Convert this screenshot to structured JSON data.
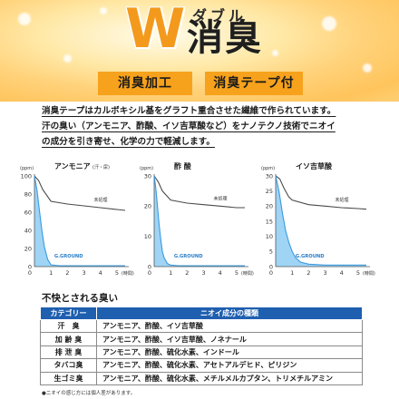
{
  "header": {
    "title_w": "W",
    "title_sub": "ダブル",
    "title_main": "消臭",
    "tags": [
      "消臭加工",
      "消臭テープ付"
    ]
  },
  "description": [
    "消臭テープはカルボキシル基をグラフト重合させた繊維で作られています。",
    "汗の臭い（アンモニア、酢酸、イソ吉草酸など）をナノテクノ技術でニオイ",
    "の成分を引き寄せ、化学の力で軽減します。"
  ],
  "chart_data": [
    {
      "type": "line",
      "title": "アンモニア",
      "title_note": "(汗・尿)",
      "y_unit": "(ppm)",
      "x_unit": "(時間)",
      "x_ticks": [
        1,
        2,
        3,
        4,
        5
      ],
      "y_ticks": [
        0,
        20,
        40,
        60,
        80,
        100
      ],
      "xlim": [
        0,
        5.5
      ],
      "ylim": [
        0,
        100
      ],
      "series": [
        {
          "name": "未処理",
          "x": [
            0,
            0.25,
            0.5,
            1,
            2,
            3,
            4,
            5,
            5.5
          ],
          "y": [
            100,
            95,
            85,
            72,
            69,
            67,
            65,
            63,
            62
          ]
        },
        {
          "name": "G.GROUND",
          "x": [
            0,
            0.15,
            0.3,
            0.45,
            0.6,
            0.8,
            1.0,
            1.5,
            2,
            3,
            4,
            5,
            5.5
          ],
          "y": [
            100,
            85,
            62,
            40,
            22,
            8,
            2,
            1,
            1,
            1,
            1,
            1,
            1
          ]
        }
      ],
      "grid": false
    },
    {
      "type": "line",
      "title": "酢 酸",
      "title_note": "",
      "y_unit": "(ppm)",
      "x_unit": "(時間)",
      "x_ticks": [
        1,
        2,
        3,
        4,
        5
      ],
      "y_ticks": [
        0,
        10,
        20,
        30
      ],
      "xlim": [
        0,
        5.5
      ],
      "ylim": [
        0,
        30
      ],
      "series": [
        {
          "name": "未処理",
          "x": [
            0,
            0.25,
            0.5,
            1,
            2,
            3,
            4,
            5,
            5.5
          ],
          "y": [
            30,
            28,
            25,
            22,
            21,
            20.5,
            20,
            19.5,
            19.5
          ]
        },
        {
          "name": "G.GROUND",
          "x": [
            0,
            0.1,
            0.2,
            0.3,
            0.4,
            0.5,
            0.6,
            0.8,
            1.0,
            1.5,
            2,
            3,
            4,
            5,
            5.5
          ],
          "y": [
            30,
            26,
            20,
            14,
            9,
            5,
            3,
            1,
            0.5,
            0.3,
            0.3,
            0.3,
            0.3,
            0.3,
            0.3
          ]
        }
      ],
      "grid": false
    },
    {
      "type": "line",
      "title": "イソ吉草酸",
      "title_note": "",
      "y_unit": "(ppm)",
      "x_unit": "(時間)",
      "x_ticks": [
        1,
        2,
        3,
        4,
        5
      ],
      "y_ticks": [
        0,
        5,
        10,
        15,
        20,
        25,
        30
      ],
      "xlim": [
        0,
        5.5
      ],
      "ylim": [
        0,
        30
      ],
      "series": [
        {
          "name": "未処理",
          "x": [
            0,
            0.25,
            0.5,
            0.8,
            1,
            2,
            3,
            4,
            5,
            5.5
          ],
          "y": [
            30,
            29,
            26,
            23,
            22,
            20.5,
            20,
            19.5,
            19.2,
            19
          ]
        },
        {
          "name": "G.GROUND",
          "x": [
            0,
            0.2,
            0.4,
            0.6,
            0.8,
            1.0,
            1.2,
            1.5,
            2,
            3,
            4,
            5,
            5.5
          ],
          "y": [
            30,
            25,
            18,
            12,
            8,
            5,
            3,
            1.5,
            0.8,
            0.5,
            0.5,
            0.5,
            0.5
          ]
        }
      ],
      "grid": false
    }
  ],
  "chart_colors": {
    "untreated": "#4a4a4a",
    "gground": "#3a9ae0",
    "fill": "#9fd4f5"
  },
  "table": {
    "title": "不快とされる臭い",
    "headers": [
      "カテゴリー",
      "ニオイ成分の種類"
    ],
    "rows": [
      {
        "category": "汗　臭",
        "components": "アンモニア、酢酸、イソ吉草酸"
      },
      {
        "category": "加 齢 臭",
        "components": "アンモニア、酢酸、イソ吉草酸、ノネナール"
      },
      {
        "category": "排 泄 臭",
        "components": "アンモニア、酢酸、硫化水素、インドール"
      },
      {
        "category": "タバコ臭",
        "components": "アンモニア、酢酸、硫化水素、アセトアルデヒド、ピリジン"
      },
      {
        "category": "生ゴミ臭",
        "components": "アンモニア、酢酸、硫化水素、メチルメルカプタン、トリメチルアミン"
      }
    ],
    "header_color": "#1f5fb0"
  },
  "note": "●ニオイの感じ方には個人差があります。"
}
